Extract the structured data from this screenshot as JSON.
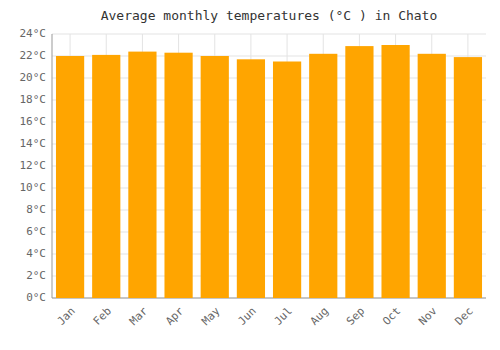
{
  "chart_data": {
    "type": "bar",
    "title": "Average monthly temperatures (°C ) in Chato",
    "categories": [
      "Jan",
      "Feb",
      "Mar",
      "Apr",
      "May",
      "Jun",
      "Jul",
      "Aug",
      "Sep",
      "Oct",
      "Nov",
      "Dec"
    ],
    "values": [
      22.0,
      22.1,
      22.4,
      22.3,
      22.0,
      21.7,
      21.5,
      22.2,
      22.9,
      23.0,
      22.2,
      21.9
    ],
    "color": "#FFA500",
    "ylim": [
      0,
      24
    ],
    "yticks": [
      {
        "value": 0,
        "label": "0°C"
      },
      {
        "value": 2,
        "label": "2°C"
      },
      {
        "value": 4,
        "label": "4°C"
      },
      {
        "value": 6,
        "label": "6°C"
      },
      {
        "value": 8,
        "label": "8°C"
      },
      {
        "value": 10,
        "label": "10°C"
      },
      {
        "value": 12,
        "label": "12°C"
      },
      {
        "value": 14,
        "label": "14°C"
      },
      {
        "value": 16,
        "label": "16°C"
      },
      {
        "value": 18,
        "label": "18°C"
      },
      {
        "value": 20,
        "label": "20°C"
      },
      {
        "value": 22,
        "label": "22°C"
      },
      {
        "value": 24,
        "label": "24°C"
      }
    ],
    "grid": true
  }
}
